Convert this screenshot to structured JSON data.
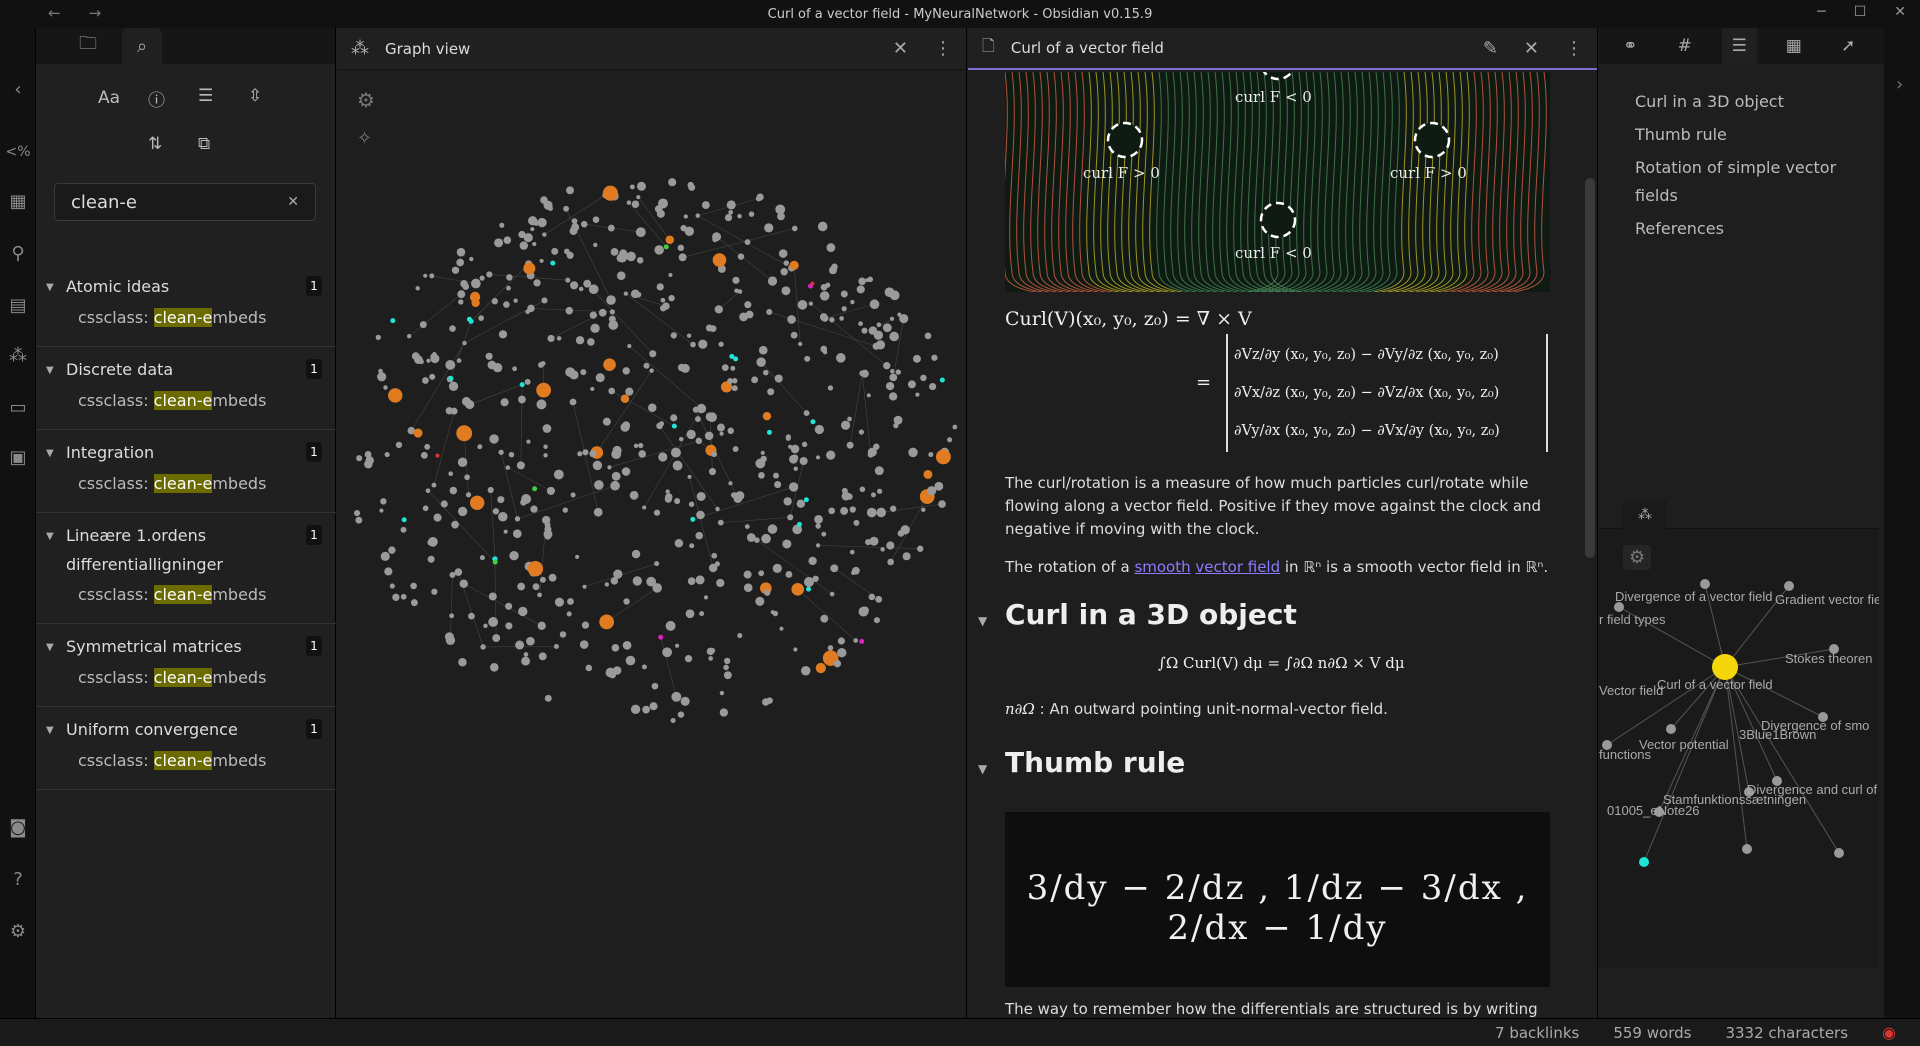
{
  "window": {
    "title": "Curl of a vector field - MyNeuralNetwork - Obsidian v0.15.9",
    "nav_back": "←",
    "nav_fwd": "→",
    "min": "─",
    "max": "☐",
    "close": "✕"
  },
  "ribbon": {
    "icons": [
      "chevron-left-icon",
      "code-icon",
      "table-icon",
      "pin-icon",
      "document-icon",
      "graph-icon",
      "cards-icon",
      "plugins-icon",
      "vault-icon",
      "help-icon",
      "settings-icon"
    ],
    "code_text": "<%"
  },
  "search": {
    "query": "clean-e",
    "clear": "✕",
    "results": [
      {
        "title": "Atomic ideas",
        "count": "1"
      },
      {
        "title": "Discrete data",
        "count": "1"
      },
      {
        "title": "Integration",
        "count": "1"
      },
      {
        "title": "Lineære 1.ordens differentialligninger",
        "count": "1"
      },
      {
        "title": "Symmetrical matrices",
        "count": "1"
      },
      {
        "title": "Uniform convergence",
        "count": "1"
      }
    ],
    "match_prefix": "cssclass: ",
    "match_hl": "clean-e",
    "match_suffix": "mbeds",
    "tools": {
      "case": "Aa"
    }
  },
  "graph": {
    "title": "Graph view"
  },
  "note": {
    "title": "Curl of a vector field",
    "fig_labels": [
      "curl F < 0",
      "curl F > 0",
      "curl F > 0",
      "curl F < 0"
    ],
    "formula1": "Curl(V)(x₀, y₀, z₀) = ∇ × V",
    "mat": [
      "∂Vz/∂y (x₀, y₀, z₀) − ∂Vy/∂z (x₀, y₀, z₀)",
      "∂Vx/∂z (x₀, y₀, z₀) − ∂Vz/∂x (x₀, y₀, z₀)",
      "∂Vy/∂x (x₀, y₀, z₀) − ∂Vx/∂y (x₀, y₀, z₀)"
    ],
    "eq": "=",
    "para1": "The curl/rotation is a measure of how much particles curl/rotate while flowing along a vector field. Positive if they move against the clock and negative if moving with the clock.",
    "para2_a": "The rotation of a ",
    "para2_link1": "smooth",
    "para2_sp": " ",
    "para2_link2": "vector field",
    "para2_b": " in ℝⁿ is a smooth vector field in ℝⁿ.",
    "h_curl3d": "Curl in a 3D object",
    "integral": "∫Ω Curl(V) dμ = ∫∂Ω n∂Ω × V dμ",
    "normal_sym": "n∂Ω",
    "normal_text": " : An outward pointing unit-normal-vector field.",
    "h_thumb": "Thumb rule",
    "board_text": "3/dy − 2/dz ,  1/dz − 3/dx ,  2/dx − 1/dy",
    "para3": "The way to remember how the differentials are structured is by writing"
  },
  "outline": {
    "items": [
      "Curl in a 3D object",
      "Thumb rule",
      "Rotation of simple vector fields",
      "References"
    ]
  },
  "localgraph": {
    "labels": [
      "Divergence of a vector field",
      "Gradient vector field",
      "r field types",
      "Stokes theoren",
      "Vector field",
      "Curl of a vector field",
      "Divergence of smo",
      "3Blue1Brown",
      "Vector potential",
      "functions",
      "Divergence and curl of ve",
      "Stamfunktionssætningen",
      "01005_eNote26"
    ]
  },
  "status": {
    "backlinks": "7 backlinks",
    "words": "559 words",
    "chars": "3332 characters"
  },
  "colors": {
    "accent": "#7a6fd0",
    "highlight": "#6b6b00",
    "node_orange": "#e07b22",
    "node_cyan": "#1ee6d6",
    "node_yellow": "#f5d60a"
  }
}
